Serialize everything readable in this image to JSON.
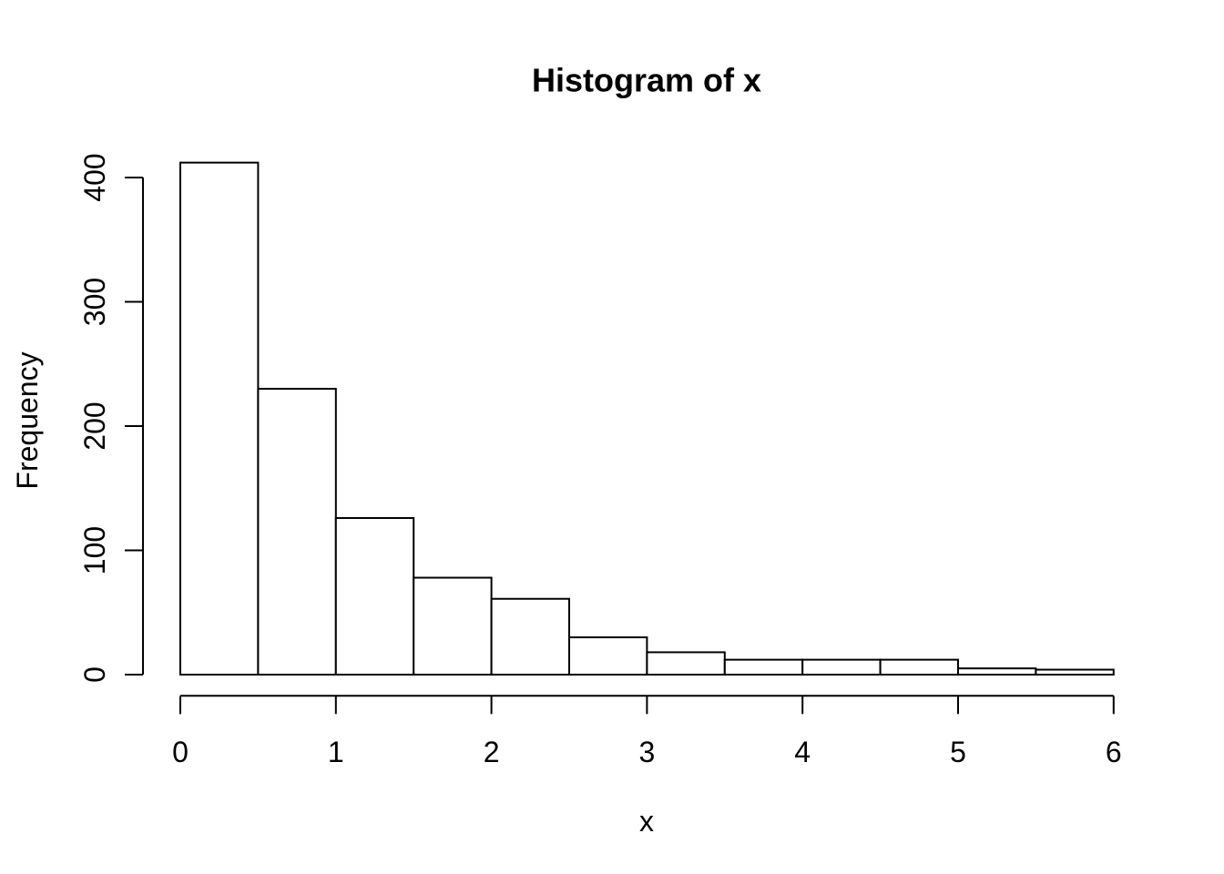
{
  "chart_data": {
    "type": "bar",
    "subtype": "histogram",
    "title": "Histogram of x",
    "xlabel": "x",
    "ylabel": "Frequency",
    "bin_edges": [
      0,
      0.5,
      1,
      1.5,
      2,
      2.5,
      3,
      3.5,
      4,
      4.5,
      5,
      5.5,
      6
    ],
    "counts": [
      412,
      230,
      126,
      78,
      61,
      30,
      18,
      12,
      12,
      12,
      5,
      4
    ],
    "x_ticks": [
      0,
      1,
      2,
      3,
      4,
      5,
      6
    ],
    "y_ticks": [
      0,
      100,
      200,
      300,
      400
    ],
    "xlim": [
      0,
      6
    ],
    "ylim": [
      0,
      400
    ],
    "grid": false,
    "legend_position": "none",
    "bar_fill": "#ffffff",
    "stroke_color": "#000000",
    "background_color": "#ffffff"
  }
}
